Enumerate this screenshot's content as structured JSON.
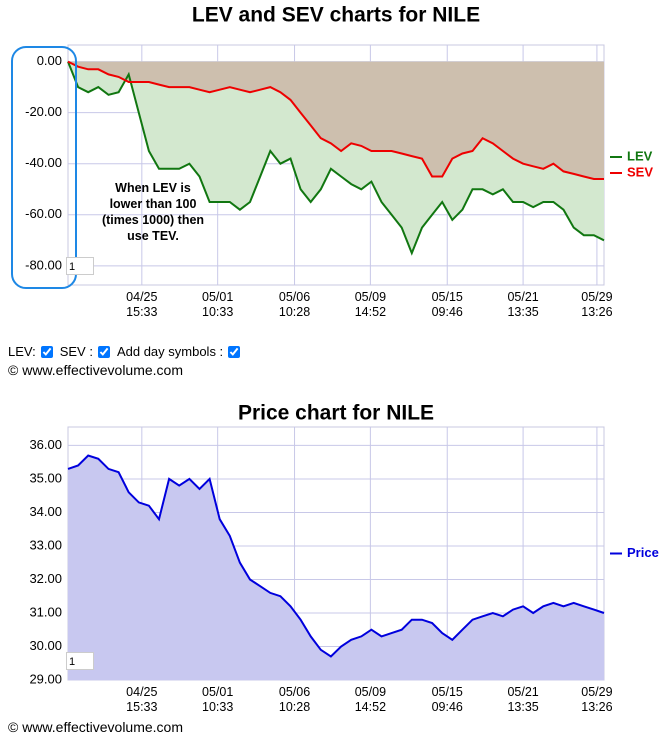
{
  "chart_data": [
    {
      "type": "line",
      "title": "LEV and SEV charts for NILE",
      "annotation": "When LEV is lower than 100 (times 1000) then use TEV.",
      "zoom_box": "1",
      "xlim": [
        0,
        53
      ],
      "xticks": [
        {
          "value": 7.3,
          "label": "04/25 15:33"
        },
        {
          "value": 14.8,
          "label": "05/01 10:33"
        },
        {
          "value": 22.4,
          "label": "05/06 10:28"
        },
        {
          "value": 29.9,
          "label": "05/09 14:52"
        },
        {
          "value": 37.5,
          "label": "05/15 09:46"
        },
        {
          "value": 45,
          "label": "05/21 13:35"
        },
        {
          "value": 52.3,
          "label": "05/29 13:26"
        }
      ],
      "ylim": [
        -87.5,
        6.5
      ],
      "yticks": [
        {
          "value": 0,
          "label": "0.00"
        },
        {
          "value": -20,
          "label": "-20.00"
        },
        {
          "value": -40,
          "label": "-40.00"
        },
        {
          "value": -60,
          "label": "-60.00"
        },
        {
          "value": -80,
          "label": "-80.00"
        }
      ],
      "grid": true,
      "legend": "right",
      "series": [
        {
          "name": "LEV",
          "color": "#117711",
          "fill": "#d3e8cf",
          "values": [
            0,
            -10,
            -12,
            -10,
            -13,
            -12,
            -5,
            -20,
            -35,
            -42,
            -42,
            -42,
            -40,
            -45,
            -55,
            -55,
            -55,
            -58,
            -55,
            -45,
            -35,
            -40,
            -38,
            -50,
            -55,
            -50,
            -42,
            -45,
            -48,
            -50,
            -47,
            -55,
            -60,
            -65,
            -75,
            -65,
            -60,
            -55,
            -62,
            -58,
            -50,
            -50,
            -52,
            -50,
            -55,
            -55,
            -57,
            -55,
            -55,
            -58,
            -65,
            -68,
            -68,
            -70
          ]
        },
        {
          "name": "SEV",
          "color": "#ee0000",
          "fill": "#cdbfae",
          "values": [
            0,
            -2,
            -3,
            -3,
            -5,
            -6,
            -8,
            -8,
            -8,
            -9,
            -10,
            -10,
            -10,
            -11,
            -12,
            -11,
            -10,
            -11,
            -12,
            -11,
            -10,
            -12,
            -15,
            -20,
            -25,
            -30,
            -32,
            -35,
            -32,
            -33,
            -35,
            -35,
            -35,
            -36,
            -37,
            -38,
            -45,
            -45,
            -38,
            -36,
            -35,
            -30,
            -32,
            -35,
            -38,
            -40,
            -41,
            -42,
            -40,
            -43,
            -44,
            -45,
            -46,
            -46
          ]
        }
      ]
    },
    {
      "type": "line",
      "title": "Price chart for NILE",
      "zoom_box": "1",
      "xlim": [
        0,
        53
      ],
      "xticks": [
        {
          "value": 7.3,
          "label": "04/25 15:33"
        },
        {
          "value": 14.8,
          "label": "05/01 10:33"
        },
        {
          "value": 22.4,
          "label": "05/06 10:28"
        },
        {
          "value": 29.9,
          "label": "05/09 14:52"
        },
        {
          "value": 37.5,
          "label": "05/15 09:46"
        },
        {
          "value": 45,
          "label": "05/21 13:35"
        },
        {
          "value": 52.3,
          "label": "05/29 13:26"
        }
      ],
      "ylim": [
        29,
        36.55
      ],
      "yticks": [
        {
          "value": 29,
          "label": "29.00"
        },
        {
          "value": 30,
          "label": "30.00"
        },
        {
          "value": 31,
          "label": "31.00"
        },
        {
          "value": 32,
          "label": "32.00"
        },
        {
          "value": 33,
          "label": "33.00"
        },
        {
          "value": 34,
          "label": "34.00"
        },
        {
          "value": 35,
          "label": "35.00"
        },
        {
          "value": 36,
          "label": "36.00"
        }
      ],
      "grid": true,
      "legend": "right",
      "series": [
        {
          "name": "Price",
          "color": "#0000dd",
          "fill": "#c8c8f0",
          "values": [
            35.3,
            35.4,
            35.7,
            35.6,
            35.3,
            35.2,
            34.6,
            34.3,
            34.2,
            33.8,
            35.0,
            34.8,
            35.0,
            34.7,
            35.0,
            33.8,
            33.3,
            32.5,
            32.0,
            31.8,
            31.6,
            31.5,
            31.2,
            30.8,
            30.3,
            29.9,
            29.7,
            30.0,
            30.2,
            30.3,
            30.5,
            30.3,
            30.4,
            30.5,
            30.8,
            30.8,
            30.7,
            30.4,
            30.2,
            30.5,
            30.8,
            30.9,
            31.0,
            30.9,
            31.1,
            31.2,
            31.0,
            31.2,
            31.3,
            31.2,
            31.3,
            31.2,
            31.1,
            31.0
          ]
        }
      ]
    }
  ],
  "controls": {
    "lev_label": "LEV:",
    "sev_label": "SEV :",
    "day_label": "Add day symbols :"
  },
  "footer": "© www.effectivevolume.com"
}
